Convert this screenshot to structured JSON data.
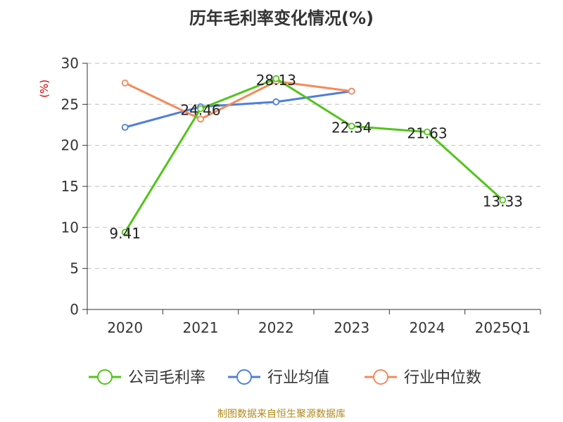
{
  "source_text": "制图数据来自恒生聚源数据库",
  "chart_data": {
    "type": "line",
    "title": "历年毛利率变化情况(%)",
    "ylabel": "(%)",
    "xlabel": "",
    "categories": [
      "2020",
      "2021",
      "2022",
      "2023",
      "2024",
      "2025Q1"
    ],
    "ylim": [
      0,
      30
    ],
    "yticks": [
      0,
      5,
      10,
      15,
      20,
      25,
      30
    ],
    "grid": true,
    "legend_position": "bottom",
    "series": [
      {
        "name": "公司毛利率",
        "color": "#52c41a",
        "values": [
          9.41,
          24.46,
          28.13,
          22.34,
          21.63,
          13.33
        ],
        "labels": true
      },
      {
        "name": "行业均值",
        "color": "#4f7fd9",
        "values": [
          22.2,
          24.7,
          25.3,
          26.6,
          null,
          null
        ],
        "labels": false
      },
      {
        "name": "行业中位数",
        "color": "#f5895a",
        "values": [
          27.6,
          23.2,
          27.8,
          26.6,
          null,
          null
        ],
        "labels": false
      }
    ]
  }
}
